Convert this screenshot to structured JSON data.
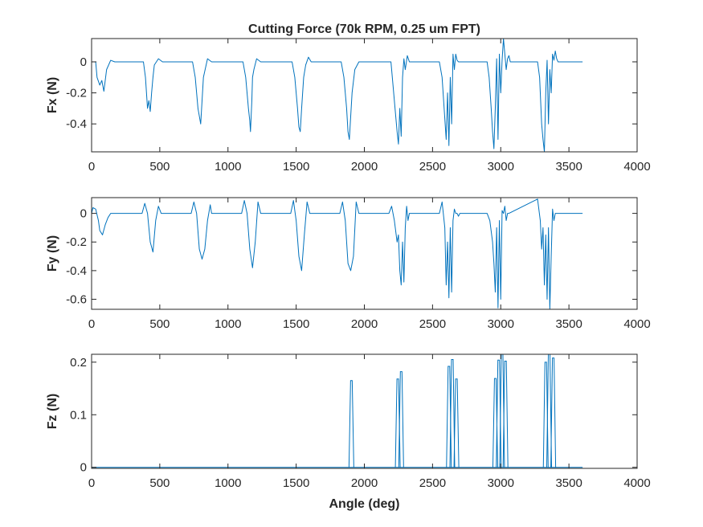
{
  "chart_data": [
    {
      "type": "line",
      "title": "Cutting Force (70k RPM, 0.25 um FPT)",
      "xlabel": "",
      "ylabel": "Fx (N)",
      "xlim": [
        0,
        4000
      ],
      "ylim": [
        -0.58,
        0.15
      ],
      "xticks": [
        0,
        500,
        1000,
        1500,
        2000,
        2500,
        3000,
        3500,
        4000
      ],
      "xtick_labels": [
        "0",
        "500",
        "1000",
        "1500",
        "2000",
        "2500",
        "3000",
        "3500",
        "4000"
      ],
      "yticks": [
        0,
        -0.2,
        -0.4
      ],
      "ytick_labels": [
        "0",
        "-0.2",
        "-0.4"
      ],
      "grid": false,
      "color": "#0072BD",
      "series": [
        {
          "x": [
            0,
            30,
            40,
            60,
            75,
            90,
            100,
            110,
            140,
            170,
            380,
            395,
            410,
            420,
            430,
            440,
            450,
            460,
            490,
            520,
            740,
            760,
            780,
            790,
            800,
            810,
            820,
            850,
            880,
            1110,
            1130,
            1150,
            1160,
            1165,
            1175,
            1180,
            1190,
            1210,
            1240,
            1470,
            1490,
            1510,
            1520,
            1530,
            1540,
            1555,
            1570,
            1590,
            1610,
            1830,
            1850,
            1870,
            1880,
            1890,
            1900,
            1910,
            1930,
            1960,
            2195,
            2210,
            2225,
            2240,
            2250,
            2260,
            2270,
            2280,
            2290,
            2300,
            2315,
            2330,
            2550,
            2570,
            2585,
            2600,
            2610,
            2620,
            2630,
            2640,
            2650,
            2660,
            2670,
            2680,
            2690,
            2710,
            2900,
            2915,
            2930,
            2940,
            2950,
            2960,
            2970,
            2980,
            2990,
            3000,
            3010,
            3020,
            3030,
            3040,
            3050,
            3060,
            3070,
            3270,
            3285,
            3300,
            3310,
            3320,
            3330,
            3340,
            3350,
            3360,
            3370,
            3380,
            3390,
            3400,
            3410,
            3420,
            3440,
            3600
          ],
          "y": [
            0,
            0,
            -0.1,
            -0.15,
            -0.12,
            -0.19,
            -0.12,
            -0.05,
            0.01,
            0,
            0,
            -0.1,
            -0.3,
            -0.25,
            -0.32,
            -0.2,
            -0.1,
            -0.02,
            0.02,
            0,
            0,
            -0.1,
            -0.3,
            -0.35,
            -0.4,
            -0.25,
            -0.1,
            0.02,
            0,
            0,
            -0.1,
            -0.3,
            -0.38,
            -0.45,
            -0.25,
            -0.1,
            -0.05,
            0.02,
            0,
            0,
            -0.1,
            -0.3,
            -0.42,
            -0.45,
            -0.3,
            -0.1,
            -0.02,
            0.03,
            0,
            0,
            -0.1,
            -0.3,
            -0.45,
            -0.5,
            -0.35,
            -0.2,
            -0.05,
            0,
            0,
            -0.15,
            -0.3,
            -0.45,
            -0.53,
            -0.3,
            -0.48,
            -0.1,
            0.02,
            -0.05,
            0.04,
            0,
            0,
            -0.1,
            -0.3,
            -0.5,
            -0.2,
            -0.54,
            -0.1,
            -0.4,
            0.05,
            -0.05,
            0.05,
            0.01,
            0,
            0,
            0,
            -0.1,
            -0.3,
            -0.45,
            -0.56,
            -0.3,
            0.02,
            -0.5,
            0.05,
            -0.2,
            0.01,
            0.15,
            0.05,
            -0.05,
            0.02,
            0.04,
            0,
            0,
            -0.1,
            -0.4,
            -0.5,
            -0.58,
            -0.2,
            0.01,
            -0.4,
            -0.05,
            -0.2,
            0.05,
            0.01,
            0.07,
            0.02,
            0,
            0,
            0
          ]
        }
      ]
    },
    {
      "type": "line",
      "title": "",
      "xlabel": "",
      "ylabel": "Fy (N)",
      "xlim": [
        0,
        4000
      ],
      "ylim": [
        -0.67,
        0.11
      ],
      "xticks": [
        0,
        500,
        1000,
        1500,
        2000,
        2500,
        3000,
        3500,
        4000
      ],
      "xtick_labels": [
        "0",
        "500",
        "1000",
        "1500",
        "2000",
        "2500",
        "3000",
        "3500",
        "4000"
      ],
      "yticks": [
        0,
        -0.2,
        -0.4,
        -0.6
      ],
      "ytick_labels": [
        "0",
        "-0.2",
        "-0.4",
        "-0.6"
      ],
      "grid": false,
      "color": "#0072BD",
      "series": [
        {
          "x": [
            0,
            10,
            30,
            50,
            60,
            80,
            100,
            120,
            140,
            180,
            370,
            390,
            410,
            430,
            450,
            470,
            490,
            510,
            730,
            750,
            770,
            790,
            810,
            830,
            850,
            870,
            880,
            1100,
            1120,
            1140,
            1160,
            1180,
            1200,
            1220,
            1240,
            1460,
            1480,
            1500,
            1520,
            1540,
            1560,
            1580,
            1600,
            1820,
            1840,
            1860,
            1880,
            1900,
            1920,
            1940,
            1960,
            2180,
            2200,
            2220,
            2240,
            2250,
            2260,
            2270,
            2280,
            2290,
            2300,
            2310,
            2320,
            2330,
            2550,
            2570,
            2590,
            2600,
            2610,
            2620,
            2630,
            2640,
            2650,
            2660,
            2670,
            2680,
            2690,
            2700,
            2900,
            2920,
            2940,
            2950,
            2960,
            2970,
            2980,
            2990,
            3000,
            3010,
            3020,
            3030,
            3040,
            3050,
            3060,
            3270,
            3290,
            3300,
            3310,
            3320,
            3330,
            3340,
            3350,
            3360,
            3370,
            3380,
            3390,
            3400,
            3420,
            3600
          ],
          "y": [
            0,
            0.04,
            0.03,
            -0.05,
            -0.12,
            -0.15,
            -0.08,
            -0.03,
            0,
            0,
            0,
            0.07,
            0,
            -0.2,
            -0.27,
            -0.05,
            0.05,
            0,
            0,
            0.08,
            0,
            -0.25,
            -0.32,
            -0.25,
            -0.05,
            0.06,
            0,
            0,
            0.09,
            0,
            -0.25,
            -0.38,
            -0.2,
            0.08,
            0,
            0,
            0.09,
            -0.05,
            -0.3,
            -0.4,
            -0.15,
            0.08,
            0,
            0,
            0.08,
            -0.05,
            -0.35,
            -0.4,
            -0.3,
            0.08,
            0,
            0,
            0.05,
            -0.05,
            -0.2,
            -0.15,
            -0.4,
            -0.5,
            -0.2,
            -0.48,
            -0.1,
            0.05,
            -0.05,
            0,
            0,
            0.08,
            -0.1,
            -0.5,
            -0.2,
            -0.59,
            -0.1,
            -0.55,
            -0.05,
            0.03,
            0,
            0,
            -0.02,
            0,
            0,
            -0.05,
            -0.2,
            -0.35,
            -0.55,
            -0.1,
            -0.66,
            -0.05,
            -0.6,
            0.02,
            0,
            0.05,
            -0.05,
            0,
            0,
            0.1,
            -0.05,
            -0.25,
            -0.1,
            -0.5,
            -0.15,
            -0.6,
            -0.1,
            -0.67,
            -0.3,
            0.03,
            -0.05,
            0,
            0,
            0
          ]
        }
      ]
    },
    {
      "type": "line",
      "title": "",
      "xlabel": "Angle (deg)",
      "ylabel": "Fz (N)",
      "xlim": [
        0,
        4000
      ],
      "ylim": [
        -0.002,
        0.215
      ],
      "xticks": [
        0,
        500,
        1000,
        1500,
        2000,
        2500,
        3000,
        3500,
        4000
      ],
      "xtick_labels": [
        "0",
        "500",
        "1000",
        "1500",
        "2000",
        "2500",
        "3000",
        "3500",
        "4000"
      ],
      "yticks": [
        0,
        0.1,
        0.2
      ],
      "ytick_labels": [
        "0",
        "0.1",
        "0.2"
      ],
      "grid": false,
      "color": "#0072BD",
      "spikes": [
        {
          "x": 1905,
          "y": 0.165
        },
        {
          "x": 2245,
          "y": 0.168
        },
        {
          "x": 2270,
          "y": 0.182
        },
        {
          "x": 2620,
          "y": 0.192
        },
        {
          "x": 2645,
          "y": 0.205
        },
        {
          "x": 2675,
          "y": 0.168
        },
        {
          "x": 2960,
          "y": 0.169
        },
        {
          "x": 2985,
          "y": 0.204
        },
        {
          "x": 3010,
          "y": 0.215
        },
        {
          "x": 3035,
          "y": 0.202
        },
        {
          "x": 3330,
          "y": 0.2
        },
        {
          "x": 3355,
          "y": 0.215
        },
        {
          "x": 3385,
          "y": 0.208
        }
      ],
      "series": [
        {
          "x": [
            0,
            3600
          ],
          "y": [
            0,
            0
          ]
        }
      ]
    }
  ]
}
